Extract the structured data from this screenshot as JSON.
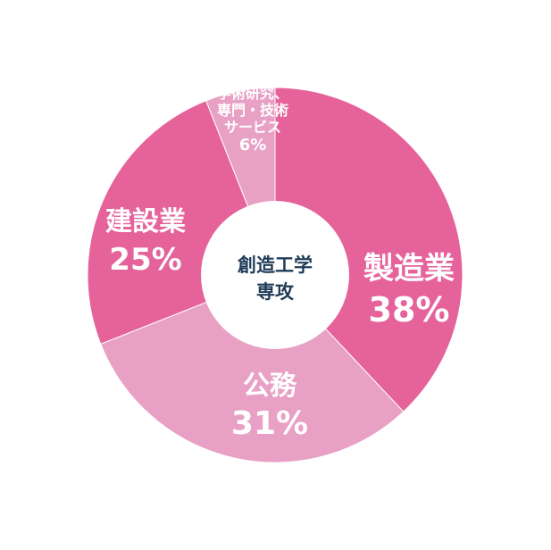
{
  "chart_data": {
    "type": "pie",
    "variant": "donut",
    "center_label": [
      "創造工学",
      "専攻"
    ],
    "slices": [
      {
        "label": [
          "製造業"
        ],
        "value": 38,
        "value_label": "38%",
        "color": "#e5629a"
      },
      {
        "label": [
          "公務"
        ],
        "value": 31,
        "value_label": "31%",
        "color": "#e8a1c5"
      },
      {
        "label": [
          "建設業"
        ],
        "value": 25,
        "value_label": "25%",
        "color": "#e5629a"
      },
      {
        "label": [
          "学術研究、",
          "専門・技術",
          "サービス"
        ],
        "value": 6,
        "value_label": "6%",
        "color": "#e8a1c5"
      }
    ],
    "start": "top",
    "direction": "clockwise",
    "legend": "none"
  }
}
